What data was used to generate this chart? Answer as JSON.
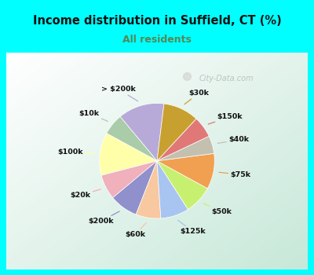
{
  "title": "Income distribution in Suffield, CT (%)",
  "subtitle": "All residents",
  "title_color": "#111111",
  "subtitle_color": "#558855",
  "bg_cyan": "#00ffff",
  "bg_chart_color": "#c8ead8",
  "watermark": "City-Data.com",
  "labels": [
    "> $200k",
    "$10k",
    "$100k",
    "$20k",
    "$200k",
    "$60k",
    "$125k",
    "$50k",
    "$75k",
    "$40k",
    "$150k",
    "$30k"
  ],
  "values": [
    13,
    6,
    12,
    7,
    8,
    7,
    8,
    8,
    10,
    5,
    6,
    10
  ],
  "colors": [
    "#b8aad8",
    "#aacca8",
    "#ffffaa",
    "#f0b0bc",
    "#9090cc",
    "#f8c8a0",
    "#a8c4f0",
    "#c8f070",
    "#f0a050",
    "#c4c0b0",
    "#e07878",
    "#c8a030"
  ],
  "startangle": 83,
  "figsize": [
    4.0,
    3.5
  ],
  "dpi": 100
}
